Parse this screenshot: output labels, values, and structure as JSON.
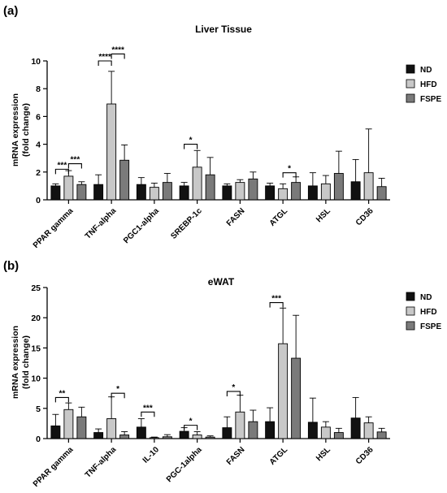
{
  "colors": {
    "ND": "#111111",
    "HFD": "#c8c8c8",
    "FSPE": "#7a7a7a"
  },
  "legend": [
    "ND",
    "HFD",
    "FSPE"
  ],
  "chart_data": [
    {
      "panel_label": "(a)",
      "type": "bar",
      "title": "Liver Tissue",
      "ylabel": "mRNA expression\n(fold change)",
      "xlabel": "",
      "ylim": [
        0,
        10
      ],
      "yticks": [
        0,
        2,
        4,
        6,
        8,
        10
      ],
      "grid": false,
      "legend_position": "top-right",
      "categories": [
        "PPAR gamma",
        "TNF-alpha",
        "PGC1-alpha",
        "SREBP-1c",
        "FASN",
        "ATGL",
        "HSL",
        "CD36"
      ],
      "series": [
        {
          "name": "ND",
          "values": [
            1.0,
            1.1,
            1.1,
            1.0,
            1.0,
            1.0,
            1.0,
            1.3
          ],
          "errors": [
            0.15,
            0.7,
            0.5,
            0.25,
            0.15,
            0.2,
            0.95,
            1.6
          ]
        },
        {
          "name": "HFD",
          "values": [
            1.7,
            6.9,
            0.9,
            2.35,
            1.25,
            0.8,
            1.15,
            1.95
          ],
          "errors": [
            0.4,
            2.35,
            0.3,
            1.2,
            0.2,
            0.35,
            0.6,
            3.15
          ]
        },
        {
          "name": "FSPE",
          "values": [
            1.1,
            2.85,
            1.25,
            1.8,
            1.5,
            1.25,
            1.9,
            0.95
          ],
          "errors": [
            0.2,
            1.1,
            0.65,
            1.25,
            0.5,
            0.4,
            1.6,
            0.6
          ]
        }
      ],
      "significance": [
        {
          "category": 0,
          "from": 0,
          "to": 1,
          "label": "***",
          "level": 2.2
        },
        {
          "category": 0,
          "from": 1,
          "to": 2,
          "label": "***",
          "level": 2.6
        },
        {
          "category": 1,
          "from": 0,
          "to": 1,
          "label": "****",
          "level": 10.0
        },
        {
          "category": 1,
          "from": 1,
          "to": 2,
          "label": "****",
          "level": 10.5
        },
        {
          "category": 3,
          "from": 0,
          "to": 1,
          "label": "*",
          "level": 4.0
        },
        {
          "category": 5,
          "from": 1,
          "to": 2,
          "label": "*",
          "level": 1.95
        }
      ]
    },
    {
      "panel_label": "(b)",
      "type": "bar",
      "title": "eWAT",
      "ylabel": "mRNA expression\n(fold change)",
      "xlabel": "",
      "ylim": [
        0,
        25
      ],
      "yticks": [
        0,
        5,
        10,
        15,
        20,
        25
      ],
      "grid": false,
      "legend_position": "top-right",
      "categories": [
        "PPAR gamma",
        "TNF-alpha",
        "IL-10",
        "PGC-1alpha",
        "FASN",
        "ATGL",
        "HSL",
        "CD36"
      ],
      "series": [
        {
          "name": "ND",
          "values": [
            2.1,
            1.0,
            1.9,
            1.2,
            1.8,
            2.8,
            2.7,
            3.4
          ],
          "errors": [
            1.9,
            0.6,
            1.4,
            0.6,
            1.8,
            2.3,
            4.0,
            3.4
          ]
        },
        {
          "name": "HFD",
          "values": [
            4.8,
            3.3,
            0.15,
            0.6,
            4.4,
            15.7,
            1.9,
            2.6
          ],
          "errors": [
            1.1,
            3.6,
            0.1,
            0.55,
            2.8,
            5.9,
            0.9,
            1.0
          ]
        },
        {
          "name": "FSPE",
          "values": [
            3.6,
            0.6,
            0.3,
            0.25,
            2.8,
            13.3,
            1.0,
            1.1
          ],
          "errors": [
            1.6,
            0.55,
            0.35,
            0.2,
            1.9,
            7.1,
            0.7,
            0.6
          ]
        }
      ],
      "significance": [
        {
          "category": 0,
          "from": 0,
          "to": 1,
          "label": "**",
          "level": 6.8
        },
        {
          "category": 1,
          "from": 1,
          "to": 2,
          "label": "*",
          "level": 7.5
        },
        {
          "category": 2,
          "from": 0,
          "to": 1,
          "label": "***",
          "level": 4.4
        },
        {
          "category": 3,
          "from": 0,
          "to": 1,
          "label": "*",
          "level": 2.2
        },
        {
          "category": 4,
          "from": 0,
          "to": 1,
          "label": "*",
          "level": 7.8
        },
        {
          "category": 5,
          "from": 0,
          "to": 1,
          "label": "***",
          "level": 22.5
        }
      ]
    }
  ]
}
